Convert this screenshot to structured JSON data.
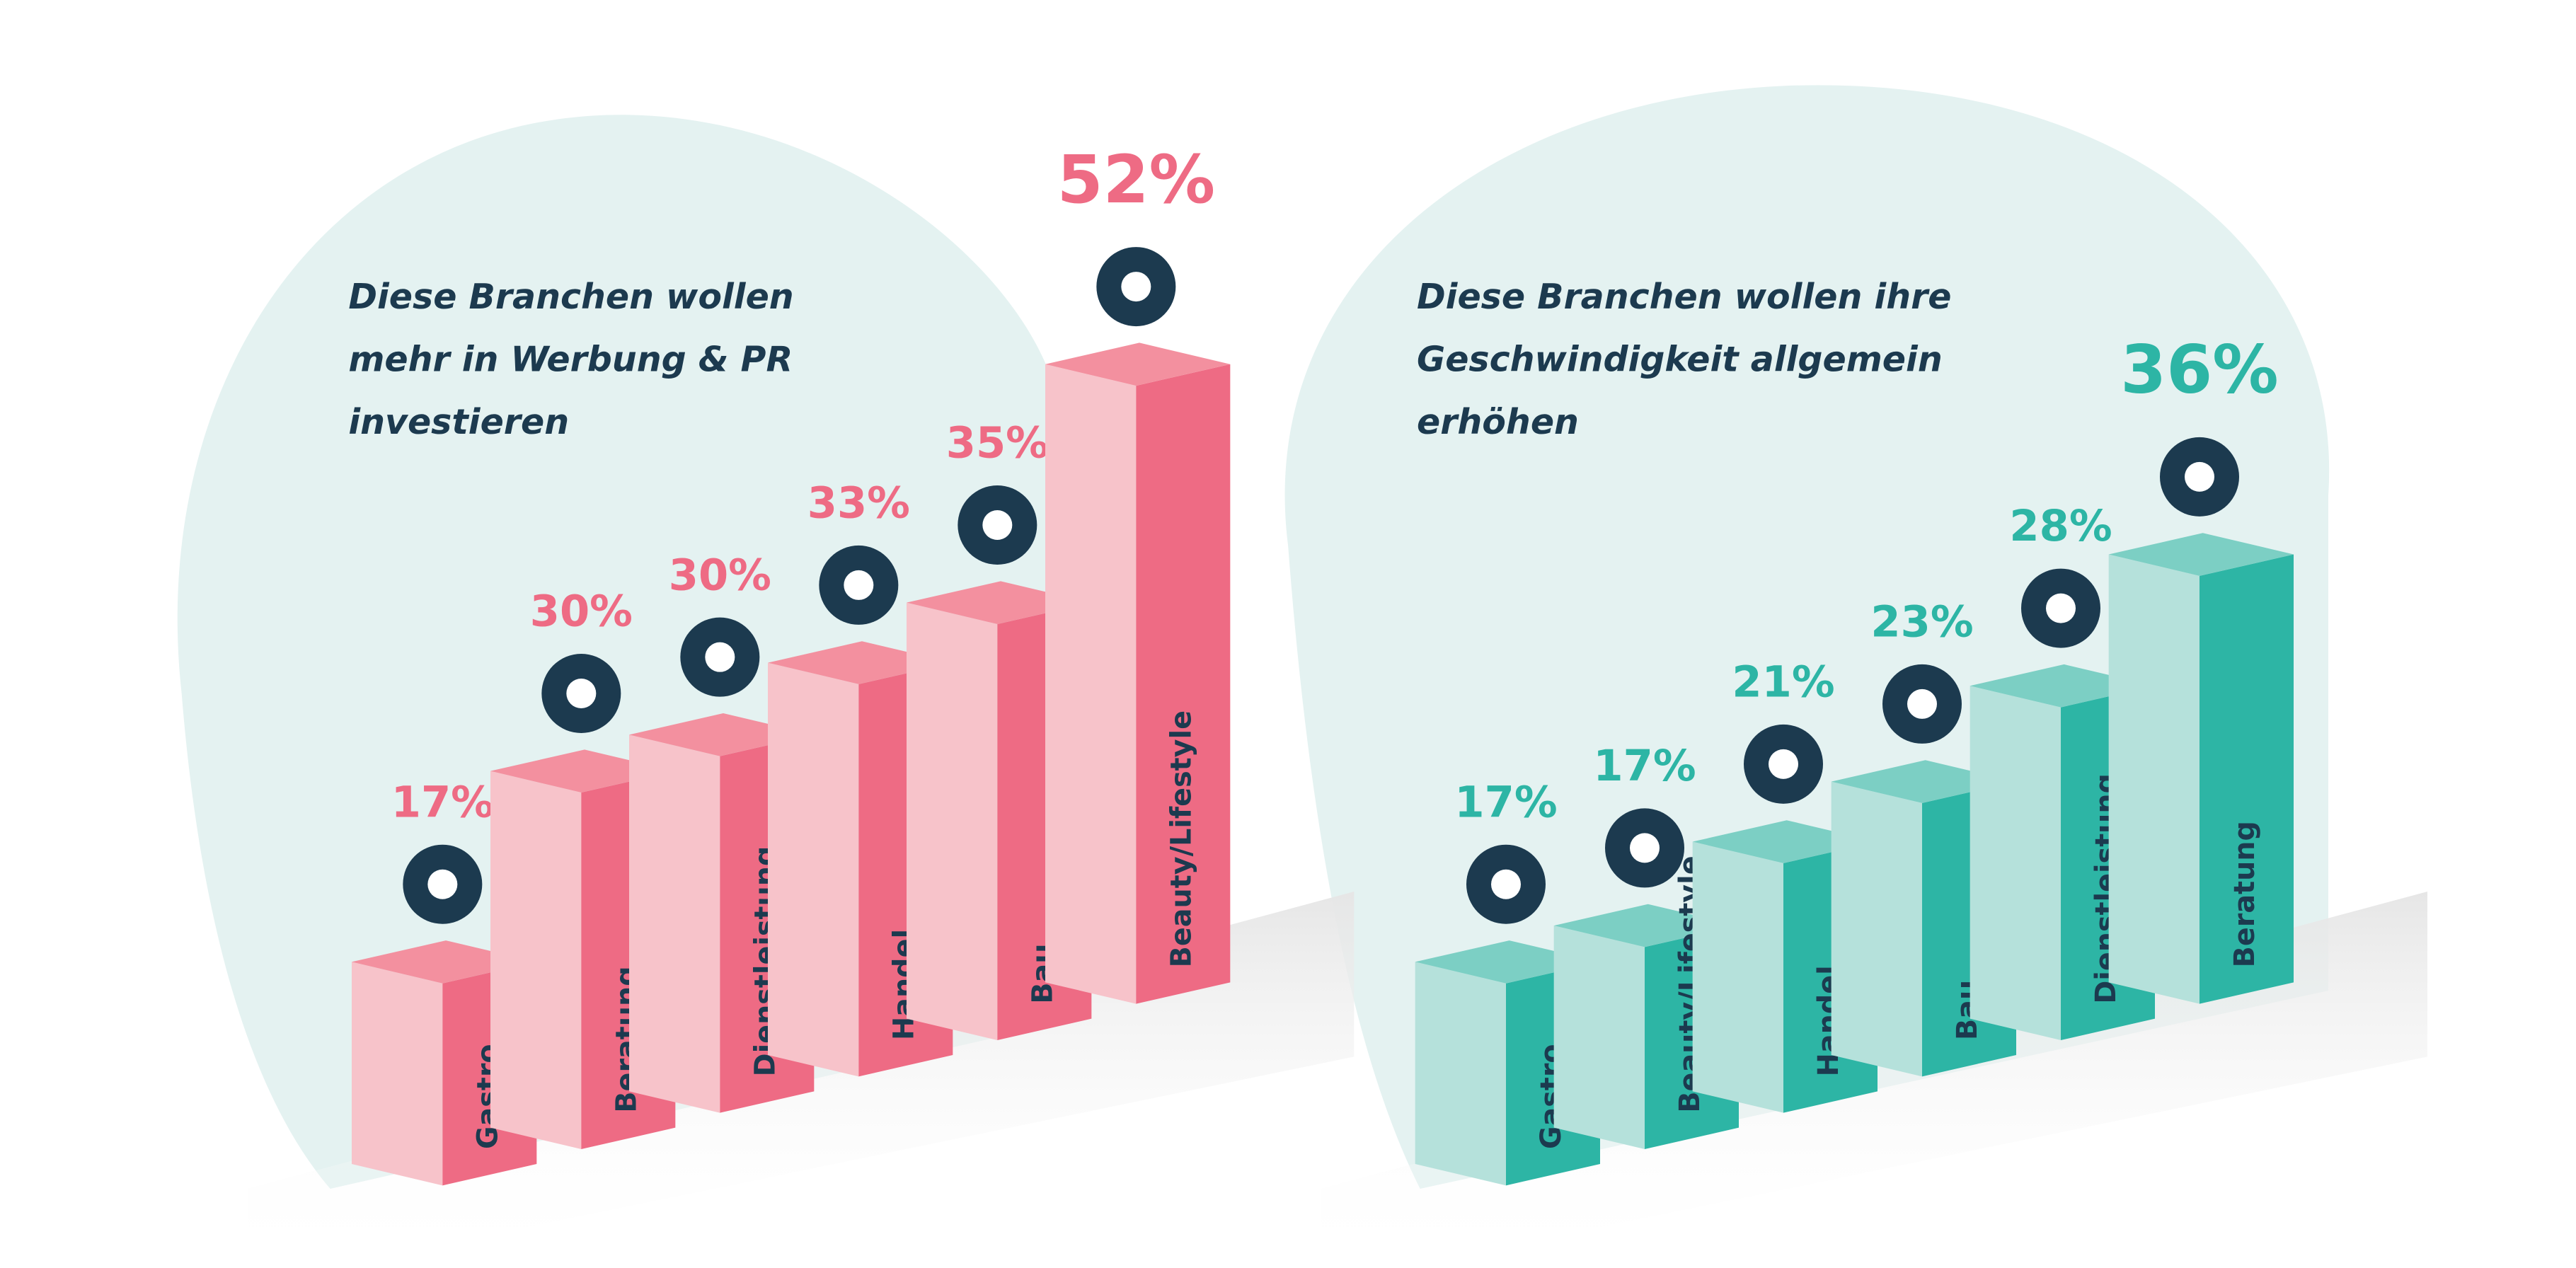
{
  "chart_data": [
    {
      "type": "bar3d",
      "title": [
        "Diese Branchen wollen",
        "mehr in Werbung & PR",
        "investieren"
      ],
      "categories": [
        "Gastro",
        "Beratung",
        "Dienstleistung",
        "Handel",
        "Bau",
        "Beauty/Lifestyle"
      ],
      "values": [
        17,
        30,
        30,
        33,
        35,
        52
      ],
      "value_labels": [
        "17%",
        "30%",
        "30%",
        "33%",
        "35%",
        "52%"
      ],
      "colors": {
        "front": "#f7c3ca",
        "side": "#ee6b84",
        "top": "#f3909f",
        "label": "#ee6b84"
      }
    },
    {
      "type": "bar3d",
      "title": [
        "Diese Branchen wollen ihre",
        "Geschwindigkeit allgemein",
        "erhöhen"
      ],
      "categories": [
        "Gastro",
        "Beauty/Lifestyle",
        "Handel",
        "Bau",
        "Dienstleistung",
        "Beratung"
      ],
      "values": [
        17,
        17,
        21,
        23,
        28,
        36
      ],
      "value_labels": [
        "17%",
        "17%",
        "21%",
        "23%",
        "28%",
        "36%"
      ],
      "colors": {
        "front": "#b5e1db",
        "side": "#2db5a5",
        "top": "#7ccfc4",
        "label": "#2db5a5"
      }
    }
  ]
}
